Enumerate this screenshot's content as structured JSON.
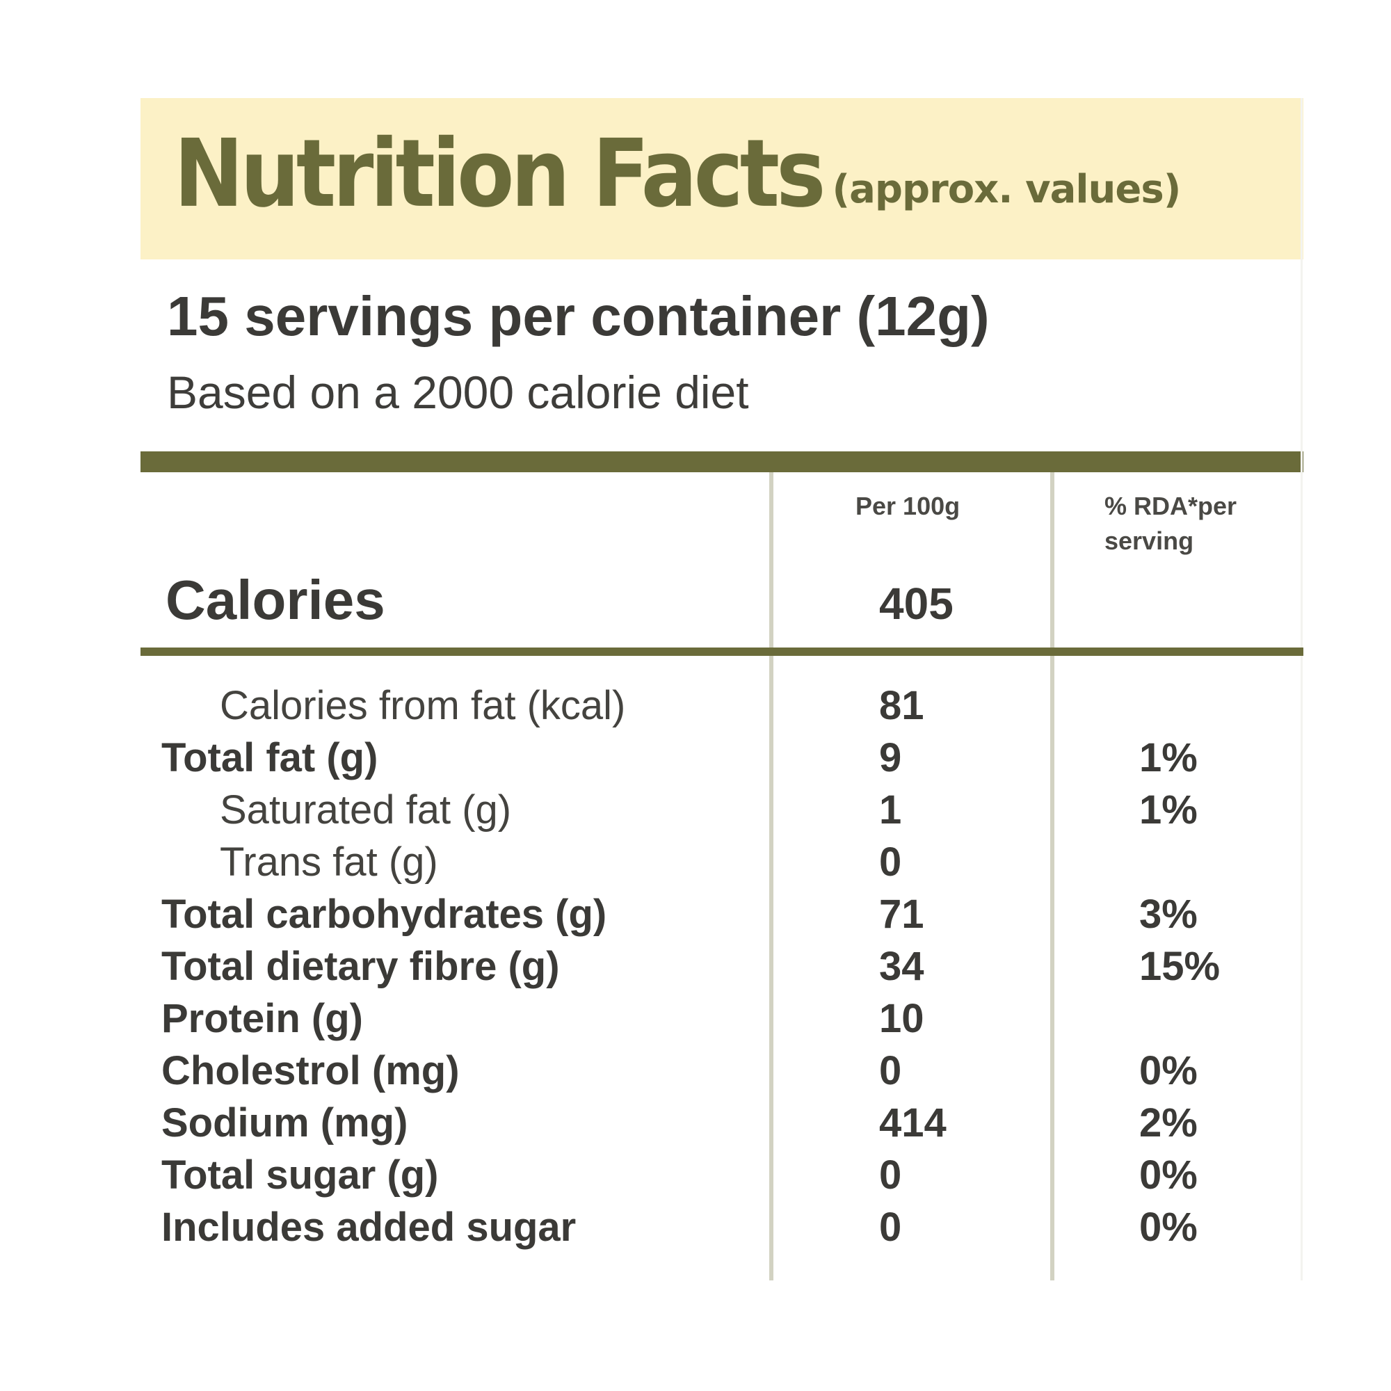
{
  "header": {
    "title": "Nutrition Facts",
    "subtitle": "(approx. values)"
  },
  "servings": {
    "text": "15 servings per container (12g)",
    "basis": "Based on a 2000 calorie diet"
  },
  "columns": {
    "per_100g": "Per 100g",
    "rda": "% RDA*per serving"
  },
  "calories": {
    "label": "Calories",
    "value": "405"
  },
  "nutrients": [
    {
      "name": "Calories from fat (kcal)",
      "value": "81",
      "rda": ""
    },
    {
      "name": "Total fat (g)",
      "value": "9",
      "rda": "1%"
    },
    {
      "name": "Saturated fat (g)",
      "value": "1",
      "rda": "1%"
    },
    {
      "name": "Trans fat (g)",
      "value": "0",
      "rda": ""
    },
    {
      "name": "Total carbohydrates (g)",
      "value": "71",
      "rda": "3%"
    },
    {
      "name": "Total dietary fibre (g)",
      "value": "34",
      "rda": "15%"
    },
    {
      "name": "Protein (g)",
      "value": "10",
      "rda": ""
    },
    {
      "name": "Cholestrol (mg)",
      "value": "0",
      "rda": "0%"
    },
    {
      "name": "Sodium (mg)",
      "value": "414",
      "rda": "2%"
    },
    {
      "name": "Total sugar (g)",
      "value": "0",
      "rda": "0%"
    },
    {
      "name": "Includes added sugar",
      "value": "0",
      "rda": "0%"
    }
  ],
  "colors": {
    "header_background": "#fcf1c6",
    "accent_olive": "#6a6b3a",
    "text": "#3b3a37",
    "column_divider": "#d2d2c2"
  }
}
